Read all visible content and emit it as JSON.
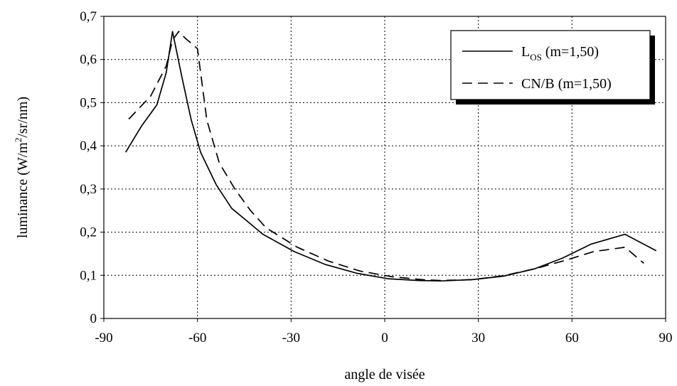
{
  "chart_data": {
    "type": "line",
    "title": "",
    "xlabel": "angle de visée",
    "ylabel": {
      "prefix": "luminance (W/m",
      "sup": "2",
      "suffix": "/sr/nm)"
    },
    "xlim": [
      -90,
      90
    ],
    "ylim": [
      0,
      0.7
    ],
    "x_ticks": [
      -90,
      -60,
      -30,
      0,
      30,
      60,
      90
    ],
    "x_tick_labels": [
      "-90",
      "-60",
      "-30",
      "0",
      "30",
      "60",
      "90"
    ],
    "y_ticks": [
      0,
      0.1,
      0.2,
      0.3,
      0.4,
      0.5,
      0.6,
      0.7
    ],
    "y_tick_labels": [
      "0",
      "0,1",
      "0,2",
      "0,3",
      "0,4",
      "0,5",
      "0,6",
      "0,7"
    ],
    "grid": true,
    "legend_position": "top-right",
    "series": [
      {
        "name": "L_OS (m=1,50)",
        "legend": {
          "main": "L",
          "sub": "OS",
          "rest": " (m=1,50)"
        },
        "style": "solid",
        "color": "#000000",
        "points": [
          [
            -83,
            0.385
          ],
          [
            -78,
            0.445
          ],
          [
            -73,
            0.495
          ],
          [
            -70,
            0.57
          ],
          [
            -68,
            0.665
          ],
          [
            -65,
            0.56
          ],
          [
            -62,
            0.46
          ],
          [
            -59,
            0.385
          ],
          [
            -54,
            0.31
          ],
          [
            -49,
            0.255
          ],
          [
            -44,
            0.225
          ],
          [
            -39,
            0.195
          ],
          [
            -29,
            0.155
          ],
          [
            -19,
            0.125
          ],
          [
            -9,
            0.105
          ],
          [
            1,
            0.092
          ],
          [
            11,
            0.088
          ],
          [
            18,
            0.087
          ],
          [
            28,
            0.09
          ],
          [
            38,
            0.098
          ],
          [
            48,
            0.115
          ],
          [
            57,
            0.14
          ],
          [
            66,
            0.172
          ],
          [
            77,
            0.195
          ],
          [
            87,
            0.157
          ]
        ]
      },
      {
        "name": "CN/B (m=1,50)",
        "legend": {
          "main": "CN/B",
          "sub": "",
          "rest": " (m=1,50)"
        },
        "style": "dashed",
        "color": "#000000",
        "points": [
          [
            -82,
            0.462
          ],
          [
            -75,
            0.515
          ],
          [
            -70,
            0.585
          ],
          [
            -68,
            0.645
          ],
          [
            -66,
            0.665
          ],
          [
            -64,
            0.65
          ],
          [
            -60,
            0.625
          ],
          [
            -57,
            0.46
          ],
          [
            -53,
            0.36
          ],
          [
            -48,
            0.3
          ],
          [
            -43,
            0.25
          ],
          [
            -38,
            0.21
          ],
          [
            -28,
            0.165
          ],
          [
            -18,
            0.133
          ],
          [
            -8,
            0.11
          ],
          [
            2,
            0.097
          ],
          [
            12,
            0.09
          ],
          [
            18,
            0.088
          ],
          [
            28,
            0.09
          ],
          [
            38,
            0.099
          ],
          [
            48,
            0.115
          ],
          [
            57,
            0.133
          ],
          [
            67,
            0.155
          ],
          [
            77,
            0.165
          ],
          [
            83,
            0.128
          ]
        ]
      }
    ]
  }
}
